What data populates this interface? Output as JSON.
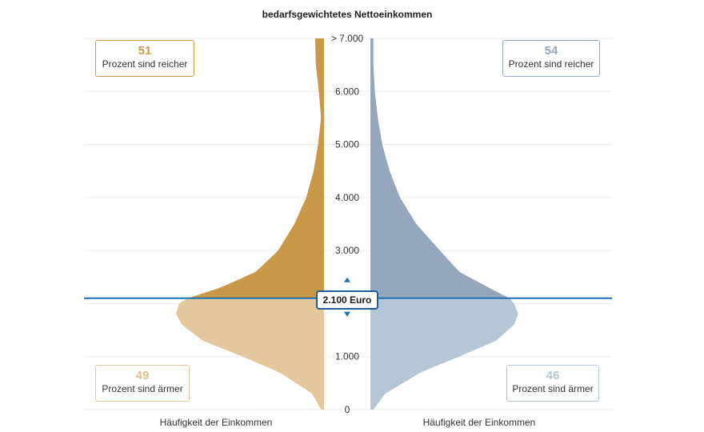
{
  "chart_data": {
    "type": "area",
    "title": "bedarfsgewichtetes Nettoeinkommen",
    "ylim": [
      0,
      7000
    ],
    "y_ticks": [
      {
        "value": 0,
        "label": "0"
      },
      {
        "value": 1000,
        "label": "1.000"
      },
      {
        "value": 2000,
        "label": "2.000"
      },
      {
        "value": 3000,
        "label": "3.000"
      },
      {
        "value": 4000,
        "label": "4.000"
      },
      {
        "value": 5000,
        "label": "5.000"
      },
      {
        "value": 6000,
        "label": "6.000"
      },
      {
        "value": 7000,
        "label": "> 7.000"
      }
    ],
    "marker": {
      "value": 2100,
      "label": "2.100 Euro",
      "color": "#1f6fb8"
    },
    "xlabel_left": "Häufigkeit der Einkommen",
    "xlabel_right": "Häufigkeit der Einkommen",
    "left": {
      "color_above": "#c9994a",
      "color_below": "#e2c89c",
      "density": [
        [
          0,
          0.02
        ],
        [
          300,
          0.08
        ],
        [
          700,
          0.3
        ],
        [
          1000,
          0.55
        ],
        [
          1300,
          0.82
        ],
        [
          1600,
          0.96
        ],
        [
          1800,
          1.0
        ],
        [
          2000,
          0.98
        ],
        [
          2100,
          0.92
        ],
        [
          2300,
          0.7
        ],
        [
          2600,
          0.46
        ],
        [
          3000,
          0.31
        ],
        [
          3500,
          0.2
        ],
        [
          4000,
          0.12
        ],
        [
          4500,
          0.07
        ],
        [
          5000,
          0.04
        ],
        [
          5500,
          0.02
        ],
        [
          6000,
          0.035
        ],
        [
          6500,
          0.055
        ],
        [
          7000,
          0.06
        ]
      ],
      "richer": {
        "value": "51",
        "text": "Prozent sind reicher"
      },
      "poorer": {
        "value": "49",
        "text": "Prozent sind ärmer"
      }
    },
    "right": {
      "color_above": "#95a7bc",
      "color_below": "#b5c6d6",
      "density": [
        [
          0,
          0.02
        ],
        [
          300,
          0.1
        ],
        [
          700,
          0.34
        ],
        [
          1000,
          0.6
        ],
        [
          1300,
          0.85
        ],
        [
          1600,
          0.97
        ],
        [
          1800,
          1.0
        ],
        [
          2000,
          0.97
        ],
        [
          2100,
          0.94
        ],
        [
          2300,
          0.8
        ],
        [
          2600,
          0.6
        ],
        [
          3000,
          0.47
        ],
        [
          3500,
          0.31
        ],
        [
          4000,
          0.2
        ],
        [
          4500,
          0.13
        ],
        [
          5000,
          0.08
        ],
        [
          5500,
          0.05
        ],
        [
          6000,
          0.03
        ],
        [
          6500,
          0.02
        ],
        [
          7000,
          0.02
        ]
      ],
      "richer": {
        "value": "54",
        "text": "Prozent sind reicher"
      },
      "poorer": {
        "value": "46",
        "text": "Prozent sind ärmer"
      }
    }
  }
}
